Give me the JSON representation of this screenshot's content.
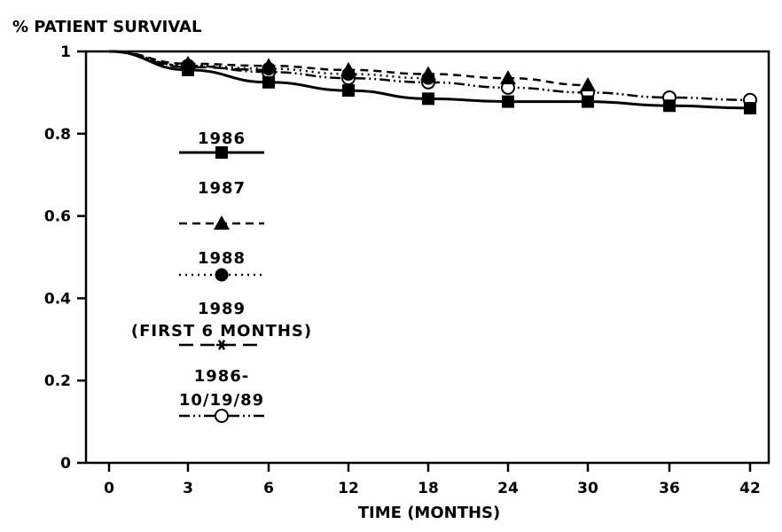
{
  "chart_data": {
    "type": "line",
    "title": "% PATIENT SURVIVAL",
    "xlabel": "TIME (MONTHS)",
    "ylabel": "% PATIENT SURVIVAL",
    "x_ticks": [
      "0",
      "3",
      "6",
      "12",
      "18",
      "24",
      "30",
      "36",
      "42"
    ],
    "y_ticks": [
      "0",
      "0.2",
      "0.4",
      "0.6",
      "0.8",
      "1"
    ],
    "ylim": [
      0,
      1
    ],
    "x_scale": "categorical-ticks",
    "legend_position": "left-inside",
    "series": [
      {
        "name": "1986",
        "line_style": "solid",
        "marker": "filled-square",
        "x": [
          0,
          3,
          6,
          12,
          18,
          24,
          30,
          36,
          42
        ],
        "y": [
          1.0,
          0.955,
          0.925,
          0.905,
          0.885,
          0.878,
          0.878,
          0.868,
          0.862
        ]
      },
      {
        "name": "1987",
        "line_style": "dashed",
        "marker": "filled-triangle",
        "x": [
          0,
          3,
          6,
          12,
          18,
          24,
          30
        ],
        "y": [
          1.0,
          0.97,
          0.965,
          0.955,
          0.945,
          0.935,
          0.918
        ]
      },
      {
        "name": "1988",
        "line_style": "dotted",
        "marker": "filled-circle",
        "x": [
          0,
          3,
          6,
          12,
          18
        ],
        "y": [
          1.0,
          0.965,
          0.958,
          0.945,
          0.935
        ]
      },
      {
        "name": "1989\n(FIRST 6 MONTHS)",
        "line_style": "long-dash",
        "marker": "asterisk",
        "x": [
          0,
          3,
          6
        ],
        "y": [
          1.0,
          0.962,
          0.955
        ]
      },
      {
        "name": "1986-\n10/19/89",
        "line_style": "dash-dot-dot",
        "marker": "open-circle",
        "x": [
          0,
          3,
          6,
          12,
          18,
          24,
          30,
          36,
          42
        ],
        "y": [
          1.0,
          0.965,
          0.95,
          0.935,
          0.925,
          0.912,
          0.9,
          0.888,
          0.882
        ]
      }
    ]
  }
}
